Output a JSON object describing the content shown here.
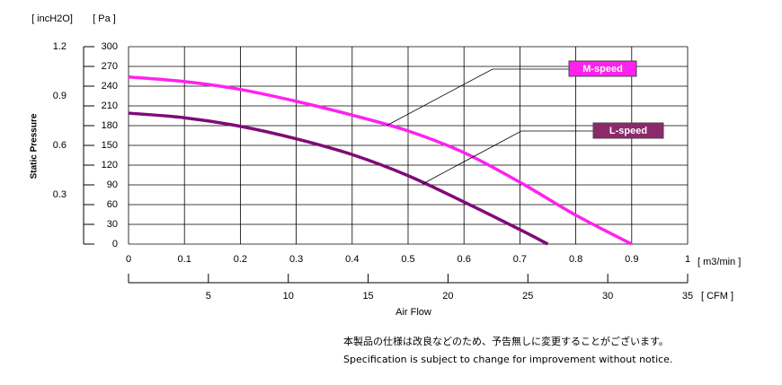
{
  "chart_data": {
    "type": "line",
    "y_unit_label": "[ Pa ]",
    "y2_unit_label": "[ incH2O]",
    "y_axis_label": "Static Pressure",
    "x_unit_label": "[ m3/min ]",
    "x2_unit_label": "[ CFM ]",
    "x_axis_label": "Air   Flow",
    "xlim": [
      0,
      1
    ],
    "xticks": [
      0,
      0.1,
      0.2,
      0.3,
      0.4,
      0.5,
      0.6,
      0.7,
      0.8,
      0.9,
      1
    ],
    "x2lim": [
      0,
      35
    ],
    "x2ticks": [
      5,
      10,
      15,
      20,
      25,
      30,
      35
    ],
    "ylim": [
      0,
      300
    ],
    "yticks": [
      0,
      30,
      60,
      90,
      120,
      150,
      180,
      210,
      240,
      270,
      300
    ],
    "y2lim": [
      0,
      1.2
    ],
    "y2ticks": [
      0.3,
      0.6,
      0.9,
      1.2
    ],
    "grid": true,
    "series": [
      {
        "name": "M-speed",
        "color": "#ff22ee",
        "label_color": "#ff22ee",
        "x": [
          0,
          0.1,
          0.2,
          0.3,
          0.4,
          0.5,
          0.6,
          0.7,
          0.8,
          0.9
        ],
        "values": [
          254,
          247,
          235,
          217,
          196,
          172,
          139,
          94,
          44,
          0
        ]
      },
      {
        "name": "L-speed",
        "color": "#800a78",
        "label_color": "#8b2a6b",
        "x": [
          0,
          0.1,
          0.2,
          0.3,
          0.4,
          0.5,
          0.6,
          0.7,
          0.75
        ],
        "values": [
          199,
          192,
          179,
          160,
          136,
          104,
          64,
          22,
          0
        ]
      }
    ],
    "notes": [
      "本製品の仕様は改良などのため、予告無しに変更することがございます。",
      "Specification is subject to change for improvement without notice."
    ]
  }
}
